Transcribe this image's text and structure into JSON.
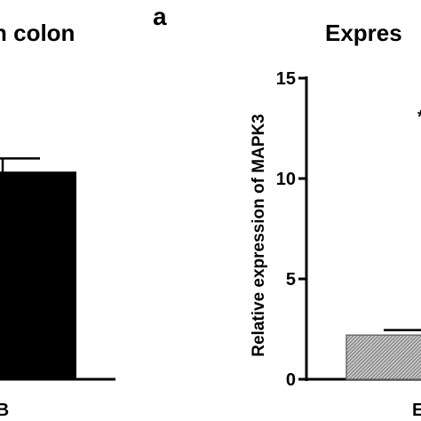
{
  "chart_data": [
    {
      "type": "bar",
      "title": "n colon",
      "categories": [
        "B"
      ],
      "values": [
        10.3
      ],
      "error_upper": [
        11.0
      ],
      "xlabel": "",
      "ylabel": "",
      "color": "#000000",
      "ylim": [
        0,
        15
      ],
      "grid": false,
      "legend": "none"
    },
    {
      "type": "bar",
      "panel_label": "a",
      "title": "Expres",
      "categories": [
        "E"
      ],
      "values": [
        2.2
      ],
      "error_upper": [
        2.45
      ],
      "ylabel": "Relative expression of MAPK3",
      "yticks": [
        "0",
        "5",
        "10",
        "15"
      ],
      "ylim": [
        0,
        15
      ],
      "fill": "hatched-grey",
      "marker": "*",
      "grid": false,
      "legend": "none"
    }
  ]
}
